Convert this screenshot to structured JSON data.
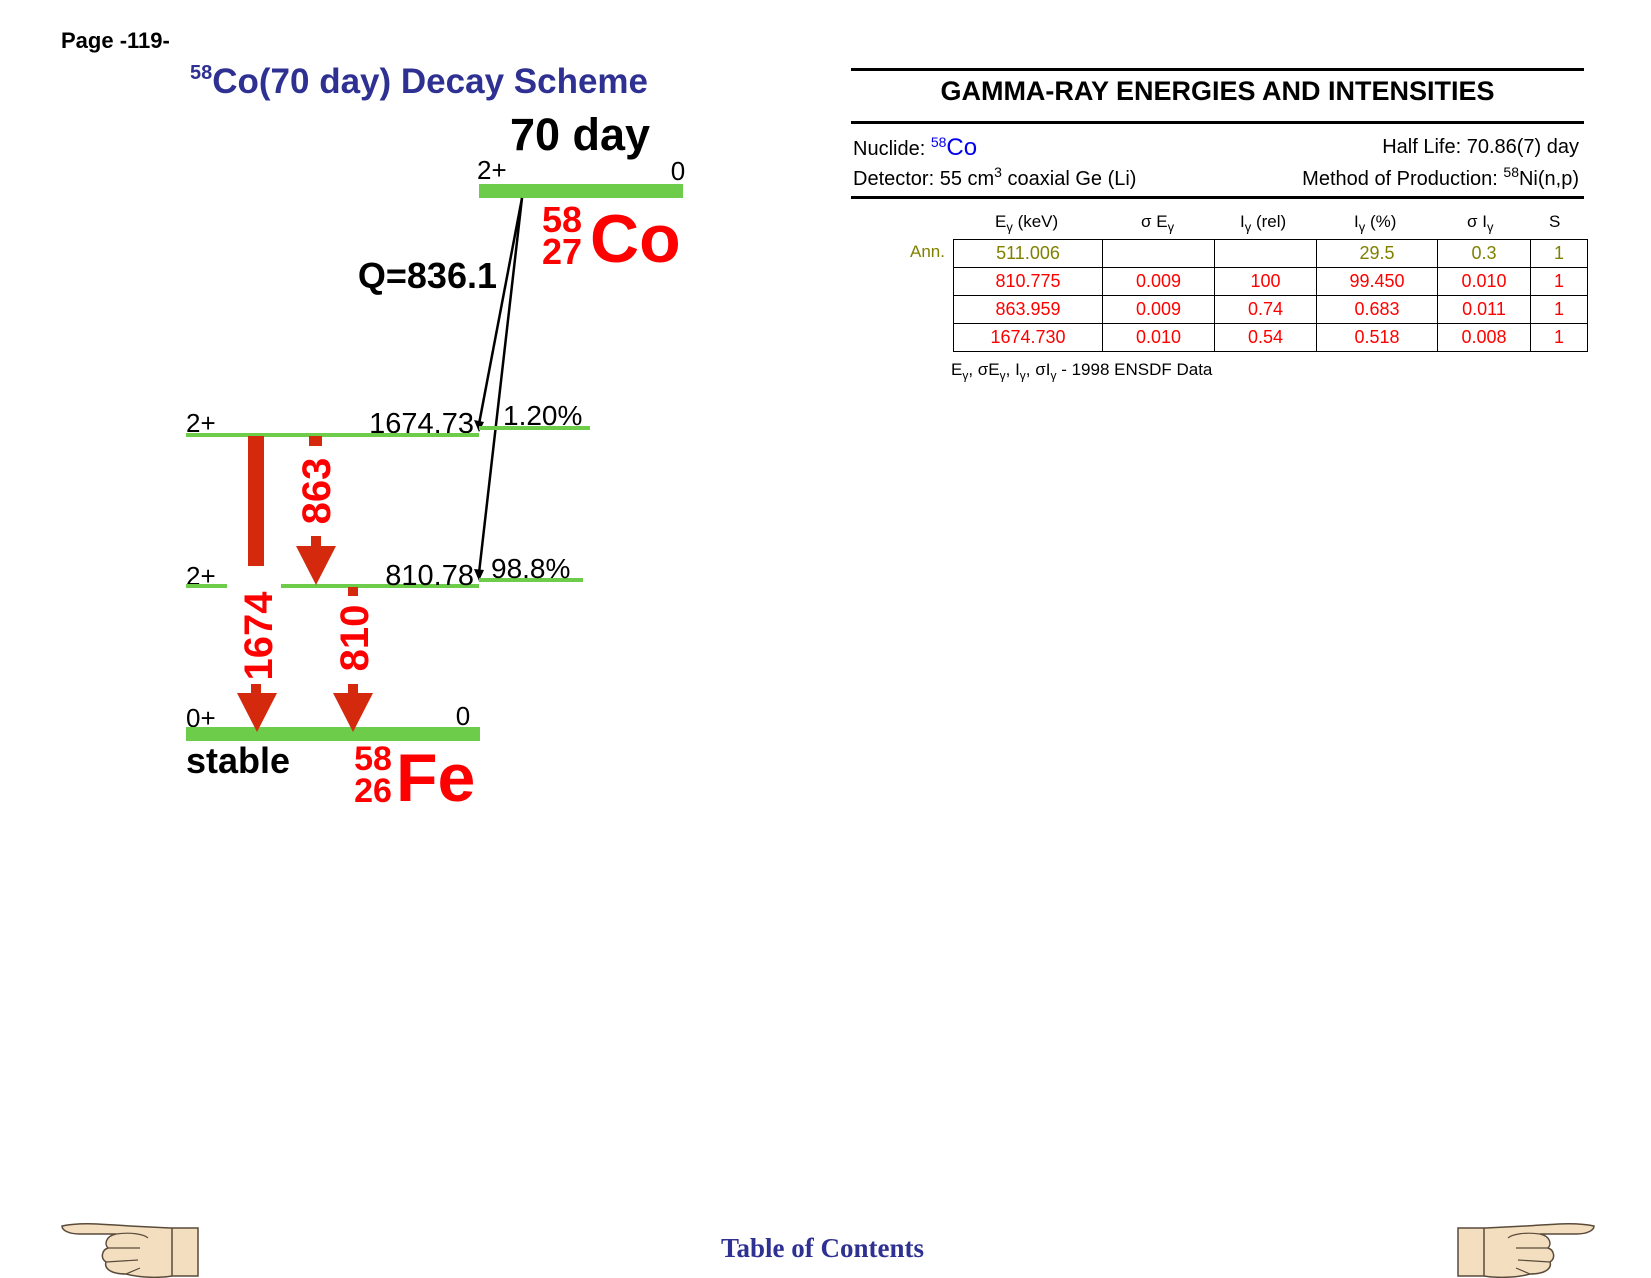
{
  "page": {
    "label": "Page -119-"
  },
  "scheme": {
    "title_sup": "58",
    "title_main": "Co(70 day) Decay Scheme",
    "parent_halflife": "70 day",
    "parent_spin": "2+",
    "parent_energy": "0",
    "parent_mass": "58",
    "parent_z": "27",
    "parent_symbol": "Co",
    "q_value": "Q=836.1",
    "levels": [
      {
        "spin": "2+",
        "energy": "1674.73",
        "branch": "1.20%"
      },
      {
        "spin": "2+",
        "energy": "810.78",
        "branch": "98.8%"
      },
      {
        "spin": "0+",
        "energy": "0"
      }
    ],
    "gammas": [
      "1674",
      "863",
      "810"
    ],
    "daughter_status": "stable",
    "daughter_mass": "58",
    "daughter_z": "26",
    "daughter_symbol": "Fe",
    "colors": {
      "level": "#6dcc4a",
      "gamma": "#d4290c",
      "nuclide": "#ff0000"
    }
  },
  "gamma_table": {
    "title": "GAMMA-RAY ENERGIES AND INTENSITIES",
    "nuclide_label": "Nuclide:",
    "nuclide_sup": "58",
    "nuclide_symbol": "Co",
    "half_life": "Half Life: 70.86(7) day",
    "detector_pre": "Detector: 55 cm",
    "detector_sup": "3",
    "detector_post": " coaxial Ge (Li)",
    "method_pre": "Method of Production: ",
    "method_sup": "58",
    "method_post": "Ni(n,p)",
    "headers": [
      "Eγ (keV)",
      "σ Eγ",
      "Iγ (rel)",
      "Iγ (%)",
      "σ Iγ",
      "S"
    ],
    "ann_label": "Ann.",
    "rows": [
      [
        "511.006",
        "",
        "",
        "29.5",
        "0.3",
        "1"
      ],
      [
        "810.775",
        "0.009",
        "100",
        "99.450",
        "0.010",
        "1"
      ],
      [
        "863.959",
        "0.009",
        "0.74",
        "0.683",
        "0.011",
        "1"
      ],
      [
        "1674.730",
        "0.010",
        "0.54",
        "0.518",
        "0.008",
        "1"
      ]
    ],
    "footnote_source": "1998 ENSDF Data"
  },
  "footer": {
    "toc": "Table of Contents"
  }
}
